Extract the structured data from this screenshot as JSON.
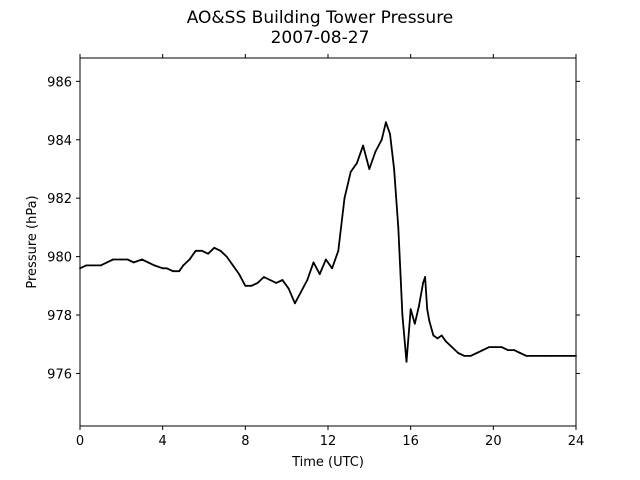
{
  "chart_data": {
    "type": "line",
    "title": "AO&SS Building Tower Pressure",
    "subtitle": "2007-08-27",
    "xlabel": "Time (UTC)",
    "ylabel": "Pressure (hPa)",
    "xlim": [
      0,
      24
    ],
    "ylim": [
      974.2,
      986.8
    ],
    "xticks": [
      0,
      4,
      8,
      12,
      16,
      20,
      24
    ],
    "yticks": [
      976,
      978,
      980,
      982,
      984,
      986
    ],
    "grid": false,
    "legend": "none",
    "line_color": "#000000",
    "series": [
      {
        "x": [
          0,
          0.3,
          0.6,
          1.0,
          1.3,
          1.6,
          2.0,
          2.3,
          2.6,
          3.0,
          3.3,
          3.6,
          4.0,
          4.2,
          4.5,
          4.8,
          5.0,
          5.3,
          5.6,
          5.9,
          6.2,
          6.5,
          6.8,
          7.1,
          7.4,
          7.7,
          8.0,
          8.3,
          8.6,
          8.9,
          9.2,
          9.5,
          9.8,
          10.1,
          10.4,
          10.7,
          11.0,
          11.3,
          11.6,
          11.9,
          12.2,
          12.5,
          12.8,
          13.1,
          13.4,
          13.7,
          14.0,
          14.3,
          14.6,
          14.8,
          15.0,
          15.2,
          15.4,
          15.6,
          15.8,
          16.0,
          16.2,
          16.4,
          16.6,
          16.7,
          16.8,
          16.9,
          17.1,
          17.3,
          17.5,
          17.7,
          18.0,
          18.3,
          18.6,
          18.9,
          19.2,
          19.5,
          19.8,
          20.1,
          20.4,
          20.7,
          21.0,
          21.3,
          21.6,
          21.9,
          22.2,
          22.5,
          22.8,
          23.1,
          23.4,
          23.7,
          24.0
        ],
        "y": [
          979.6,
          979.7,
          979.7,
          979.7,
          979.8,
          979.9,
          979.9,
          979.9,
          979.8,
          979.9,
          979.8,
          979.7,
          979.6,
          979.6,
          979.5,
          979.5,
          979.7,
          979.9,
          980.2,
          980.2,
          980.1,
          980.3,
          980.2,
          980.0,
          979.7,
          979.4,
          979.0,
          979.0,
          979.1,
          979.3,
          979.2,
          979.1,
          979.2,
          978.9,
          978.4,
          978.8,
          979.2,
          979.8,
          979.4,
          979.9,
          979.6,
          980.2,
          982.0,
          982.9,
          983.2,
          983.8,
          983.0,
          983.6,
          984.0,
          984.6,
          984.2,
          983.0,
          981.0,
          978.0,
          976.4,
          978.2,
          977.7,
          978.3,
          979.1,
          979.3,
          978.2,
          977.8,
          977.3,
          977.2,
          977.3,
          977.1,
          976.9,
          976.7,
          976.6,
          976.6,
          976.7,
          976.8,
          976.9,
          976.9,
          976.9,
          976.8,
          976.8,
          976.7,
          976.6,
          976.6,
          976.6,
          976.6,
          976.6,
          976.6,
          976.6,
          976.6,
          976.6
        ]
      }
    ]
  }
}
